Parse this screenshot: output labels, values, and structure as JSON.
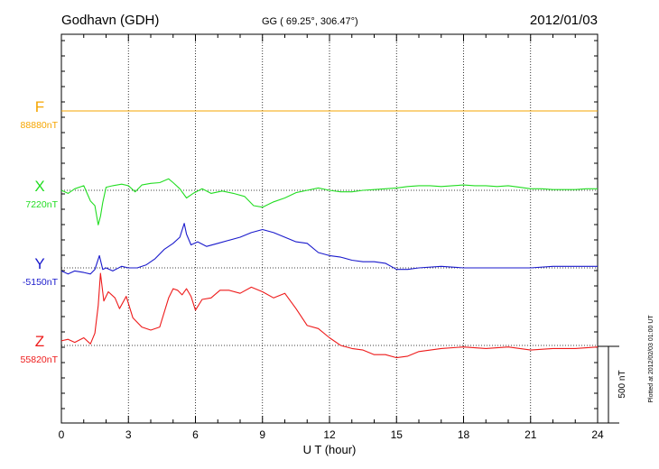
{
  "header": {
    "station": "Godhavn (GDH)",
    "coords": "GG ( 69.25°, 306.47°)",
    "date": "2012/01/03"
  },
  "footer_note": "Plotted at 2012/02/03 01:00 UT",
  "chart_data": {
    "type": "line",
    "xlabel": "U T (hour)",
    "xlim": [
      0,
      24
    ],
    "x_ticks": [
      "0",
      "3",
      "6",
      "9",
      "12",
      "15",
      "18",
      "21",
      "24"
    ],
    "scale_bar_label": "500 nT",
    "scale_bar_nT": 500,
    "grid": true,
    "series": [
      {
        "name": "F",
        "baseline_label": "88880nT",
        "color": "#f5a500",
        "x": [
          0,
          24
        ],
        "y": [
          88880,
          88880
        ]
      },
      {
        "name": "X",
        "baseline_label": "7220nT",
        "color": "#22dd22",
        "x": [
          0,
          0.3,
          0.6,
          1.0,
          1.3,
          1.5,
          1.65,
          1.75,
          1.85,
          2.0,
          2.3,
          2.7,
          3.0,
          3.3,
          3.6,
          4.0,
          4.4,
          4.8,
          5.0,
          5.3,
          5.6,
          5.9,
          6.3,
          6.7,
          7.2,
          7.7,
          8.2,
          8.6,
          9.0,
          9.5,
          10.0,
          10.5,
          11.0,
          11.5,
          12.0,
          12.5,
          13.0,
          13.5,
          14.0,
          14.5,
          15.0,
          15.5,
          16.0,
          16.5,
          17.0,
          17.5,
          18.0,
          18.5,
          19.0,
          19.5,
          20.0,
          20.5,
          21.0,
          21.5,
          22.0,
          22.5,
          23.0,
          23.5,
          24.0
        ],
        "y": [
          7220,
          7200,
          7230,
          7250,
          7150,
          7120,
          6995,
          7050,
          7140,
          7240,
          7250,
          7260,
          7250,
          7210,
          7255,
          7265,
          7270,
          7295,
          7270,
          7230,
          7170,
          7200,
          7230,
          7200,
          7215,
          7200,
          7180,
          7120,
          7110,
          7145,
          7170,
          7205,
          7220,
          7235,
          7220,
          7210,
          7210,
          7220,
          7225,
          7230,
          7235,
          7245,
          7250,
          7250,
          7245,
          7250,
          7255,
          7250,
          7250,
          7245,
          7250,
          7240,
          7230,
          7230,
          7225,
          7225,
          7225,
          7230,
          7230
        ]
      },
      {
        "name": "Y",
        "baseline_label": "-5150nT",
        "color": "#1a1acc",
        "x": [
          0,
          0.3,
          0.6,
          1.0,
          1.3,
          1.5,
          1.7,
          1.85,
          2.0,
          2.3,
          2.7,
          3.0,
          3.4,
          3.8,
          4.2,
          4.6,
          5.0,
          5.3,
          5.5,
          5.6,
          5.8,
          6.1,
          6.5,
          7.0,
          7.5,
          8.0,
          8.5,
          9.0,
          9.5,
          10.0,
          10.5,
          11.0,
          11.5,
          12.0,
          12.5,
          13.0,
          13.5,
          14.0,
          14.5,
          15.0,
          15.5,
          16.0,
          17.0,
          18.0,
          19.0,
          20.0,
          21.0,
          22.0,
          22.5,
          23.0,
          23.5,
          24.0
        ],
        "y": [
          -5170,
          -5190,
          -5170,
          -5180,
          -5190,
          -5160,
          -5070,
          -5160,
          -5150,
          -5170,
          -5140,
          -5150,
          -5150,
          -5130,
          -5090,
          -5030,
          -4990,
          -4950,
          -4860,
          -4930,
          -5000,
          -4980,
          -5010,
          -4990,
          -4970,
          -4950,
          -4920,
          -4900,
          -4920,
          -4950,
          -4980,
          -4990,
          -5050,
          -5070,
          -5080,
          -5100,
          -5110,
          -5110,
          -5120,
          -5160,
          -5160,
          -5150,
          -5140,
          -5150,
          -5150,
          -5150,
          -5150,
          -5140,
          -5140,
          -5140,
          -5140,
          -5140
        ]
      },
      {
        "name": "Z",
        "baseline_label": "55820nT",
        "color": "#ee1a1a",
        "x": [
          0,
          0.3,
          0.6,
          1.0,
          1.3,
          1.5,
          1.65,
          1.75,
          1.9,
          2.1,
          2.4,
          2.6,
          2.9,
          3.2,
          3.6,
          4.0,
          4.4,
          4.8,
          5.0,
          5.2,
          5.4,
          5.6,
          5.8,
          6.0,
          6.3,
          6.7,
          7.1,
          7.5,
          8.0,
          8.5,
          9.0,
          9.5,
          10.0,
          10.5,
          11.0,
          11.5,
          12.0,
          12.5,
          13.0,
          13.5,
          14.0,
          14.5,
          15.0,
          15.5,
          16.0,
          17.0,
          18.0,
          19.0,
          20.0,
          21.0,
          22.0,
          23.0,
          24.0
        ],
        "y": [
          55850,
          55860,
          55840,
          55870,
          55830,
          55900,
          56080,
          56290,
          56110,
          56170,
          56130,
          56060,
          56140,
          56000,
          55940,
          55920,
          55940,
          56130,
          56190,
          56180,
          56150,
          56190,
          56140,
          56050,
          56120,
          56130,
          56180,
          56180,
          56160,
          56200,
          56170,
          56130,
          56160,
          56060,
          55950,
          55930,
          55870,
          55820,
          55800,
          55790,
          55760,
          55760,
          55740,
          55750,
          55780,
          55800,
          55810,
          55800,
          55810,
          55790,
          55800,
          55800,
          55810
        ]
      }
    ]
  }
}
